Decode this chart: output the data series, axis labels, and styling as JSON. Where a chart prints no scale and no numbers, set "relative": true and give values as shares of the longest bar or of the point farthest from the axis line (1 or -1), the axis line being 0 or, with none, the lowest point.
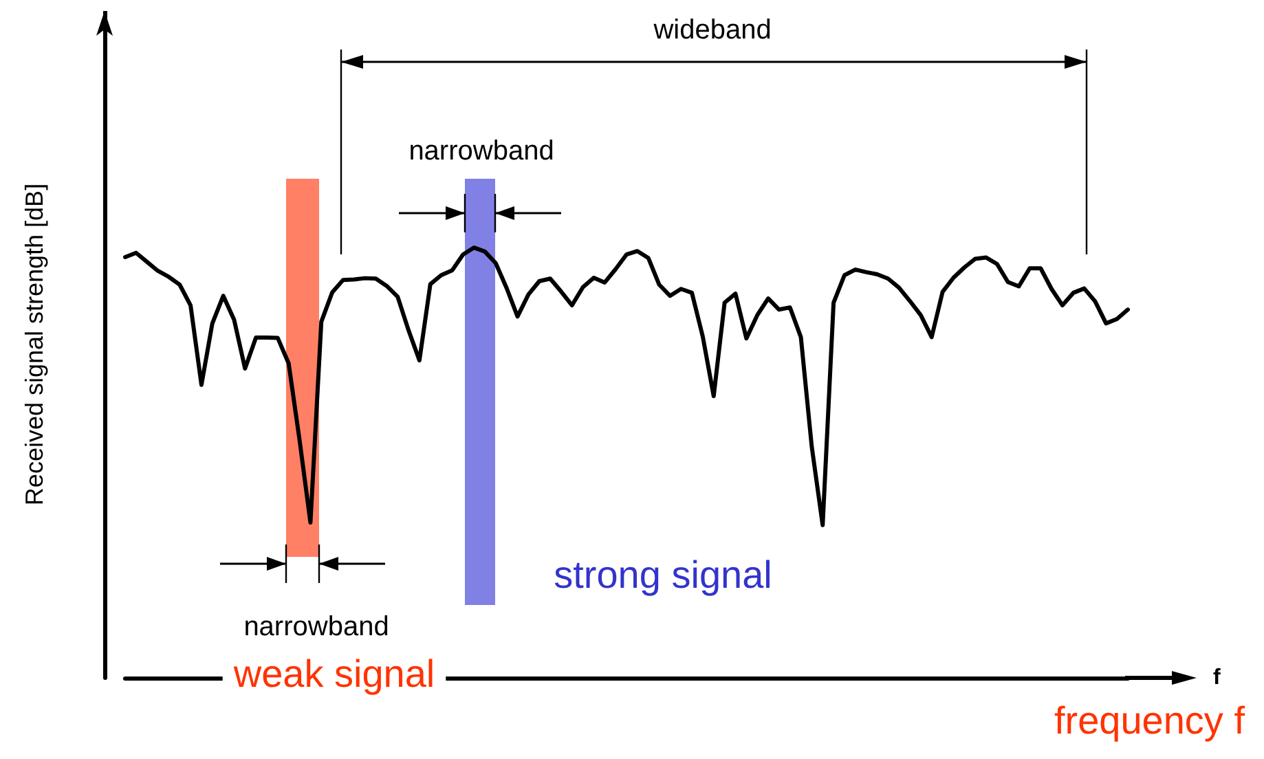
{
  "chart_data": {
    "type": "line",
    "relative": true,
    "ylabel": "Received signal strength [dB]",
    "xlabel": "f",
    "marker": "none",
    "line_style": "solid",
    "categories": [
      null,
      null,
      null,
      null,
      null,
      null,
      null,
      null,
      null,
      null,
      null,
      null,
      null,
      null,
      null,
      null,
      null,
      null,
      null,
      null,
      null,
      null,
      null,
      null,
      null,
      null,
      null,
      null,
      null,
      null,
      null,
      null,
      null,
      null,
      null,
      null,
      null,
      null,
      null,
      null,
      null,
      null,
      null,
      null,
      null,
      null,
      null,
      null,
      null,
      null,
      null,
      null,
      null,
      null,
      null,
      null,
      null,
      null,
      null,
      null,
      null,
      null,
      null,
      null,
      null,
      null,
      null,
      null,
      null,
      null,
      null,
      null,
      null,
      null,
      null,
      null,
      null,
      null,
      null,
      null,
      null,
      null,
      null,
      null,
      null,
      null,
      null,
      null,
      null,
      null,
      null,
      null,
      null
    ],
    "series": [
      {
        "color": "#000000",
        "values": [
          0.978,
          0.988,
          0.967,
          0.946,
          0.932,
          0.914,
          0.866,
          0.681,
          0.824,
          0.888,
          0.832,
          0.719,
          0.791,
          0.791,
          0.79,
          0.731,
          0.553,
          0.361,
          0.828,
          0.896,
          0.925,
          0.926,
          0.929,
          0.928,
          0.911,
          0.886,
          0.808,
          0.738,
          0.915,
          0.936,
          0.947,
          0.984,
          1,
          0.991,
          0.964,
          0.906,
          0.84,
          0.891,
          0.922,
          0.928,
          0.898,
          0.866,
          0.908,
          0.93,
          0.919,
          0.95,
          0.984,
          0.992,
          0.976,
          0.914,
          0.888,
          0.904,
          0.895,
          0.793,
          0.655,
          0.872,
          0.893,
          0.789,
          0.843,
          0.882,
          0.856,
          0.861,
          0.792,
          0.537,
          0.355,
          0.872,
          0.936,
          0.949,
          0.943,
          0.938,
          0.928,
          0.907,
          0.876,
          0.843,
          0.792,
          0.897,
          0.93,
          0.954,
          0.974,
          0.977,
          0.962,
          0.92,
          0.91,
          0.952,
          0.952,
          0.904,
          0.866,
          0.895,
          0.905,
          0.875,
          0.824,
          0.834,
          0.856
        ]
      }
    ],
    "annotations": [
      "wideband",
      "narrowband",
      "narrowband",
      "weak signal",
      "strong signal",
      "frequency f"
    ]
  }
}
